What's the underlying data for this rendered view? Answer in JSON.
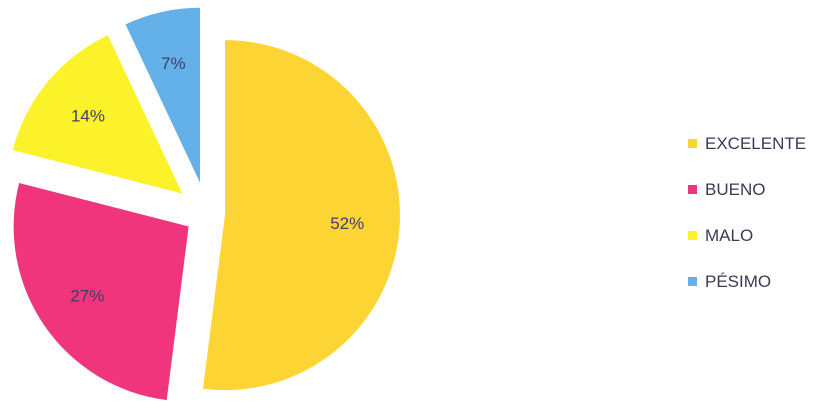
{
  "chart_data": {
    "type": "pie",
    "title": "",
    "exploded": true,
    "legend_position": "right",
    "slices": [
      {
        "label": "EXCELENTE",
        "value": 52,
        "value_label": "52%",
        "color": "#fcd535"
      },
      {
        "label": "BUENO",
        "value": 27,
        "value_label": "27%",
        "color": "#f0357c"
      },
      {
        "label": "MALO",
        "value": 14,
        "value_label": "14%",
        "color": "#fbf22a"
      },
      {
        "label": "PÉSIMO",
        "value": 7,
        "value_label": "7%",
        "color": "#64b1ea"
      }
    ]
  },
  "label_colors": {
    "slice_text": "#3f3f66",
    "legend_text": "#3a3a55"
  }
}
